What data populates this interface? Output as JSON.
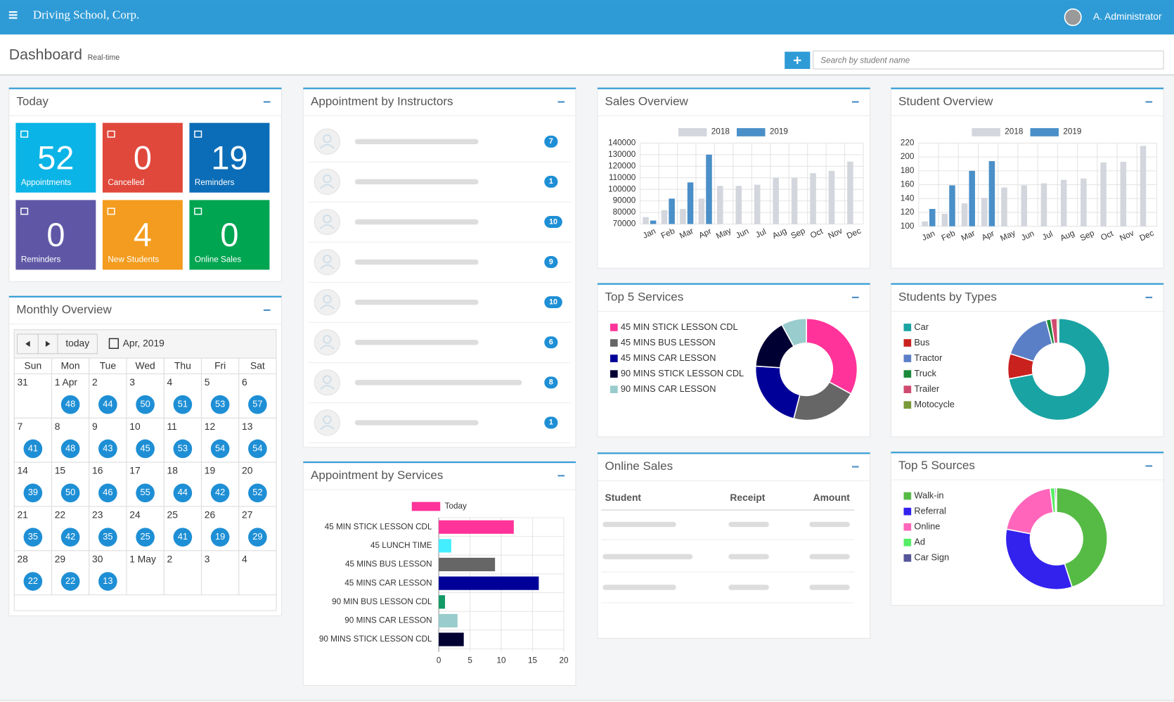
{
  "header": {
    "brand": "Driving School, Corp.",
    "user": "A. Administrator"
  },
  "page": {
    "title": "Dashboard",
    "subtitle": "Real-time",
    "search_placeholder": "Search by student name"
  },
  "today": {
    "title": "Today",
    "tiles": [
      {
        "value": 52,
        "label": "Appointments",
        "color": "#0ab4e6"
      },
      {
        "value": 0,
        "label": "Cancelled",
        "color": "#e0483b"
      },
      {
        "value": 19,
        "label": "Reminders",
        "color": "#0b6db7"
      },
      {
        "value": 0,
        "label": "Reminders",
        "color": "#5f57a6"
      },
      {
        "value": 4,
        "label": "New Students",
        "color": "#f39c1f"
      },
      {
        "value": 0,
        "label": "Online Sales",
        "color": "#00a551"
      }
    ]
  },
  "calendar": {
    "title": "Monthly Overview",
    "today_button": "today",
    "month": "Apr, 2019",
    "weekdays": [
      "Sun",
      "Mon",
      "Tue",
      "Wed",
      "Thu",
      "Fri",
      "Sat"
    ],
    "weeks": [
      [
        {
          "day": "31"
        },
        {
          "day": "1 Apr",
          "count": 48
        },
        {
          "day": "2",
          "count": 44
        },
        {
          "day": "3",
          "count": 50
        },
        {
          "day": "4",
          "count": 51
        },
        {
          "day": "5",
          "count": 53
        },
        {
          "day": "6",
          "count": 57
        }
      ],
      [
        {
          "day": "7",
          "count": 41
        },
        {
          "day": "8",
          "count": 48
        },
        {
          "day": "9",
          "count": 43
        },
        {
          "day": "10",
          "count": 45
        },
        {
          "day": "11",
          "count": 53
        },
        {
          "day": "12",
          "count": 54
        },
        {
          "day": "13",
          "count": 54
        }
      ],
      [
        {
          "day": "14",
          "count": 39
        },
        {
          "day": "15",
          "count": 50
        },
        {
          "day": "16",
          "count": 46
        },
        {
          "day": "17",
          "count": 55
        },
        {
          "day": "18",
          "count": 44
        },
        {
          "day": "19",
          "count": 42
        },
        {
          "day": "20",
          "count": 52
        }
      ],
      [
        {
          "day": "21",
          "count": 35
        },
        {
          "day": "22",
          "count": 42
        },
        {
          "day": "23",
          "count": 35
        },
        {
          "day": "24",
          "count": 25
        },
        {
          "day": "25",
          "count": 41
        },
        {
          "day": "26",
          "count": 19
        },
        {
          "day": "27",
          "count": 29
        }
      ],
      [
        {
          "day": "28",
          "count": 22
        },
        {
          "day": "29",
          "count": 22
        },
        {
          "day": "30",
          "count": 13
        },
        {
          "day": "1 May"
        },
        {
          "day": "2"
        },
        {
          "day": "3"
        },
        {
          "day": "4"
        }
      ]
    ]
  },
  "instructors": {
    "title": "Appointment by Instructors",
    "counts": [
      7,
      1,
      10,
      9,
      10,
      6,
      8,
      1
    ]
  },
  "online_sales": {
    "title": "Online Sales",
    "columns": [
      "Student",
      "Receipt",
      "Amount"
    ]
  },
  "chart_data": [
    {
      "type": "bar",
      "title": "Sales Overview",
      "categories": [
        "Jan",
        "Feb",
        "Mar",
        "Apr",
        "May",
        "Jun",
        "Jul",
        "Aug",
        "Sep",
        "Oct",
        "Nov",
        "Dec"
      ],
      "series": [
        {
          "name": "2018",
          "color": "#d3d6dd",
          "values": [
            76000,
            82000,
            83000,
            92000,
            103000,
            103000,
            104000,
            110000,
            110000,
            114000,
            116000,
            124000
          ]
        },
        {
          "name": "2019",
          "color": "#4a8fc8",
          "values": [
            73000,
            92000,
            106000,
            130000,
            null,
            null,
            null,
            null,
            null,
            null,
            null,
            null
          ]
        }
      ],
      "ylim": [
        70000,
        140000
      ],
      "yticks": [
        70000,
        80000,
        90000,
        100000,
        110000,
        120000,
        130000,
        140000
      ],
      "grid": true,
      "legend": "top"
    },
    {
      "type": "bar",
      "title": "Student Overview",
      "categories": [
        "Jan",
        "Feb",
        "Mar",
        "Apr",
        "May",
        "Jun",
        "Jul",
        "Aug",
        "Sep",
        "Oct",
        "Nov",
        "Dec"
      ],
      "series": [
        {
          "name": "2018",
          "color": "#d3d6dd",
          "values": [
            107,
            118,
            133,
            141,
            156,
            159,
            162,
            167,
            169,
            192,
            193,
            216
          ]
        },
        {
          "name": "2019",
          "color": "#4a8fc8",
          "values": [
            125,
            159,
            180,
            194,
            null,
            null,
            null,
            null,
            null,
            null,
            null,
            null
          ]
        }
      ],
      "ylim": [
        100,
        220
      ],
      "yticks": [
        100,
        120,
        140,
        160,
        180,
        200,
        220
      ],
      "grid": true,
      "legend": "top"
    },
    {
      "type": "hbar",
      "title": "Appointment by Services",
      "categories": [
        "45 MIN STICK LESSON CDL",
        "45 LUNCH TIME",
        "45 MINS BUS LESSON",
        "45 MINS CAR LESSON",
        "90 MIN BUS LESSON CDL",
        "90 MINS CAR LESSON",
        "90 MINS STICK LESSON CDL"
      ],
      "series": [
        {
          "name": "Today",
          "color": "#ff3399",
          "values": [
            12,
            2,
            9,
            16,
            1,
            3,
            4
          ]
        }
      ],
      "colors": [
        "#ff3399",
        "#44eeff",
        "#666666",
        "#000099",
        "#119966",
        "#99cccc",
        "#000033"
      ],
      "xlim": [
        0,
        20
      ],
      "xticks": [
        0,
        5,
        10,
        15,
        20
      ],
      "grid": true,
      "legend": "top"
    },
    {
      "type": "pie",
      "title": "Top 5 Services",
      "donut": true,
      "categories": [
        "45 MIN STICK LESSON CDL",
        "45 MINS BUS LESSON",
        "45 MINS CAR LESSON",
        "90 MINS STICK LESSON CDL",
        "90 MINS CAR LESSON"
      ],
      "values": [
        33,
        21,
        22,
        16,
        8
      ],
      "colors": [
        "#ff3399",
        "#666666",
        "#000099",
        "#000033",
        "#99cccc"
      ],
      "legend": "left"
    },
    {
      "type": "pie",
      "title": "Students by Types",
      "donut": true,
      "categories": [
        "Car",
        "Bus",
        "Tractor",
        "Truck",
        "Trailer",
        "Motocycle"
      ],
      "values": [
        72,
        8,
        16,
        1.5,
        2,
        0.5
      ],
      "colors": [
        "#1aa3a3",
        "#c9211e",
        "#5b7fc7",
        "#1a8a3a",
        "#d04a70",
        "#7a9a3a"
      ],
      "legend": "left"
    },
    {
      "type": "pie",
      "title": "Top 5 Sources",
      "donut": true,
      "categories": [
        "Walk-in",
        "Referral",
        "Online",
        "Ad",
        "Car Sign"
      ],
      "values": [
        45,
        33,
        20,
        1.5,
        0.5
      ],
      "colors": [
        "#55bb44",
        "#3322ee",
        "#ff66bb",
        "#55ee66",
        "#555599"
      ],
      "legend": "left"
    }
  ]
}
